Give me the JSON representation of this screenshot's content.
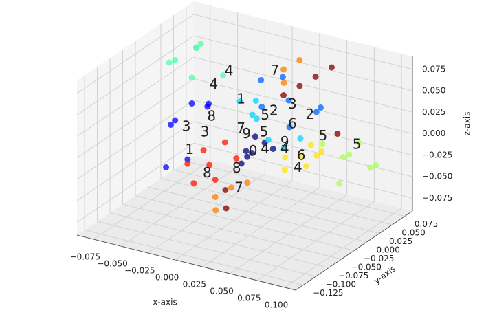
{
  "chart_data": {
    "type": "scatter3d",
    "xlabel": "x-axis",
    "ylabel": "y-axis",
    "zlabel": "z-axis",
    "xlim": [
      -0.09,
      0.11
    ],
    "ylim": [
      -0.14,
      0.09
    ],
    "zlim": [
      -0.09,
      0.09
    ],
    "xticks": [
      {
        "value": -0.075,
        "label": "−0.075"
      },
      {
        "value": -0.05,
        "label": "−0.050"
      },
      {
        "value": -0.025,
        "label": "−0.025"
      },
      {
        "value": 0,
        "label": "0.000"
      },
      {
        "value": 0.025,
        "label": "0.025"
      },
      {
        "value": 0.05,
        "label": "0.050"
      },
      {
        "value": 0.075,
        "label": "0.075"
      },
      {
        "value": 0.1,
        "label": "0.100"
      }
    ],
    "yticks": [
      {
        "value": -0.125,
        "label": "−0.125"
      },
      {
        "value": -0.1,
        "label": "−0.100"
      },
      {
        "value": -0.075,
        "label": "−0.075"
      },
      {
        "value": -0.05,
        "label": "−0.050"
      },
      {
        "value": -0.025,
        "label": "−0.025"
      },
      {
        "value": 0,
        "label": "0.000"
      },
      {
        "value": 0.025,
        "label": "0.025"
      },
      {
        "value": 0.05,
        "label": "0.050"
      },
      {
        "value": 0.075,
        "label": "0.075"
      }
    ],
    "zticks": [
      {
        "value": -0.075,
        "label": "−0.075"
      },
      {
        "value": -0.05,
        "label": "−0.050"
      },
      {
        "value": -0.025,
        "label": "−0.025"
      },
      {
        "value": 0,
        "label": "0.000"
      },
      {
        "value": 0.025,
        "label": "0.025"
      },
      {
        "value": 0.05,
        "label": "0.050"
      },
      {
        "value": 0.075,
        "label": "0.075"
      }
    ],
    "grid": true,
    "series": [
      {
        "color": "#00007f",
        "x": [
          0.005,
          0.012,
          0.0,
          0.015,
          0.008,
          -0.005,
          0.01
        ],
        "y": [
          0.0,
          0.01,
          -0.01,
          0.02,
          0.0,
          0.01,
          -0.02
        ],
        "z": [
          -0.02,
          -0.01,
          -0.03,
          -0.02,
          0.0,
          -0.025,
          -0.015
        ]
      },
      {
        "color": "#0000ff",
        "x": [
          -0.06,
          -0.05,
          -0.04,
          -0.07,
          -0.03,
          -0.055,
          -0.045
        ],
        "y": [
          -0.02,
          0.0,
          -0.03,
          0.01,
          -0.01,
          -0.04,
          0.02
        ],
        "z": [
          0.0,
          0.02,
          -0.03,
          -0.01,
          0.03,
          -0.04,
          0.01
        ]
      },
      {
        "color": "#0063ff",
        "x": [
          0.0,
          0.02,
          0.03,
          -0.01,
          0.04,
          0.05,
          0.01
        ],
        "y": [
          0.03,
          0.04,
          0.02,
          0.05,
          0.06,
          0.03,
          0.05
        ],
        "z": [
          0.02,
          0.03,
          0.01,
          0.04,
          0.02,
          0.03,
          0.05
        ]
      },
      {
        "color": "#00d4ff",
        "x": [
          0.0,
          0.02,
          -0.02,
          0.03,
          0.01,
          0.04,
          -0.01
        ],
        "y": [
          0.02,
          0.0,
          0.03,
          0.01,
          -0.01,
          0.02,
          0.04
        ],
        "z": [
          0.01,
          0.0,
          0.02,
          -0.01,
          0.03,
          0.0,
          0.02
        ]
      },
      {
        "color": "#4dffaa",
        "x": [
          -0.07,
          -0.06,
          -0.05,
          -0.08,
          -0.04,
          -0.065,
          -0.055
        ],
        "y": [
          0.01,
          0.03,
          0.0,
          0.02,
          0.04,
          0.05,
          0.02
        ],
        "z": [
          0.06,
          0.07,
          0.05,
          0.05,
          0.04,
          0.065,
          0.075
        ]
      },
      {
        "color": "#aaff4d",
        "x": [
          0.07,
          0.08,
          0.09,
          0.06,
          0.1,
          0.085,
          0.075
        ],
        "y": [
          0.04,
          0.03,
          0.05,
          0.02,
          0.04,
          0.0,
          0.06
        ],
        "z": [
          -0.02,
          -0.01,
          -0.03,
          0.0,
          -0.02,
          -0.03,
          -0.01
        ]
      },
      {
        "color": "#ffe500",
        "x": [
          0.04,
          0.05,
          0.045,
          0.035,
          0.055,
          0.05,
          0.04
        ],
        "y": [
          0.02,
          0.01,
          0.03,
          0.0,
          0.02,
          0.04,
          -0.01
        ],
        "z": [
          -0.02,
          -0.025,
          -0.01,
          -0.03,
          -0.015,
          -0.02,
          -0.01
        ]
      },
      {
        "color": "#ff7d00",
        "x": [
          0.0,
          -0.01,
          0.01,
          -0.005,
          0.02,
          0.03,
          0.025
        ],
        "y": [
          -0.03,
          -0.04,
          -0.02,
          -0.05,
          0.03,
          0.04,
          0.02
        ],
        "z": [
          -0.05,
          -0.06,
          -0.045,
          -0.07,
          0.07,
          0.08,
          0.06
        ]
      },
      {
        "color": "#ff1400",
        "x": [
          -0.02,
          -0.03,
          -0.01,
          -0.04,
          0.0,
          -0.025,
          -0.015
        ],
        "y": [
          -0.03,
          -0.02,
          -0.04,
          -0.03,
          -0.02,
          -0.05,
          -0.01
        ],
        "z": [
          -0.03,
          -0.02,
          -0.04,
          -0.035,
          -0.02,
          -0.045,
          -0.01
        ]
      },
      {
        "color": "#7f0000",
        "x": [
          0.03,
          0.04,
          0.02,
          0.05,
          -0.01,
          0.06,
          0.0
        ],
        "y": [
          0.04,
          0.05,
          0.03,
          0.06,
          -0.02,
          0.05,
          -0.04
        ],
        "z": [
          0.05,
          0.06,
          0.04,
          0.07,
          -0.06,
          0.0,
          -0.07
        ]
      }
    ],
    "annotations": [
      {
        "text": "7",
        "x": 0.026,
        "y": 0,
        "z": 0.082
      },
      {
        "text": "4",
        "x": -0.016,
        "y": 0,
        "z": 0.068
      },
      {
        "text": "4",
        "x": -0.03,
        "y": 0,
        "z": 0.048
      },
      {
        "text": "3",
        "x": 0.042,
        "y": 0,
        "z": 0.048
      },
      {
        "text": "2",
        "x": 0.058,
        "y": 0,
        "z": 0.041
      },
      {
        "text": "1",
        "x": -0.005,
        "y": 0,
        "z": 0.039
      },
      {
        "text": "8",
        "x": -0.032,
        "y": 0,
        "z": 0.01
      },
      {
        "text": "3",
        "x": -0.055,
        "y": 0,
        "z": -0.009
      },
      {
        "text": "3",
        "x": -0.038,
        "y": 0,
        "z": -0.01
      },
      {
        "text": "1",
        "x": -0.052,
        "y": 0,
        "z": -0.035
      },
      {
        "text": "8",
        "x": -0.036,
        "y": 0,
        "z": -0.057
      },
      {
        "text": "8",
        "x": -0.009,
        "y": 0,
        "z": -0.043
      },
      {
        "text": "7",
        "x": -0.007,
        "y": 0,
        "z": -0.065
      },
      {
        "text": "5",
        "x": 0.101,
        "y": 0,
        "z": 0.02
      },
      {
        "text": "5",
        "x": 0.07,
        "y": 0,
        "z": 0.02
      },
      {
        "text": "6",
        "x": 0.05,
        "y": 0,
        "z": -0.009
      },
      {
        "text": "4",
        "x": 0.047,
        "y": 0,
        "z": -0.024
      },
      {
        "text": "4",
        "x": 0.035,
        "y": 0,
        "z": -0.006
      },
      {
        "text": "9",
        "x": 0.035,
        "y": 0,
        "z": 0.0015
      },
      {
        "text": "6",
        "x": 0.042,
        "y": 0,
        "z": 0.025
      },
      {
        "text": "2",
        "x": 0.025,
        "y": 0,
        "z": 0.035
      },
      {
        "text": "5",
        "x": 0.017,
        "y": 0,
        "z": 0.027
      },
      {
        "text": "7",
        "x": -0.005,
        "y": 0,
        "z": 0.005
      },
      {
        "text": "0",
        "x": 0.006,
        "y": 0,
        "z": -0.018
      },
      {
        "text": "9",
        "x": 0.0,
        "y": 0,
        "z": 0.0
      },
      {
        "text": "5",
        "x": 0.016,
        "y": 0,
        "z": 0.007
      },
      {
        "text": "4",
        "x": 0.017,
        "y": 0,
        "z": -0.012
      }
    ]
  }
}
